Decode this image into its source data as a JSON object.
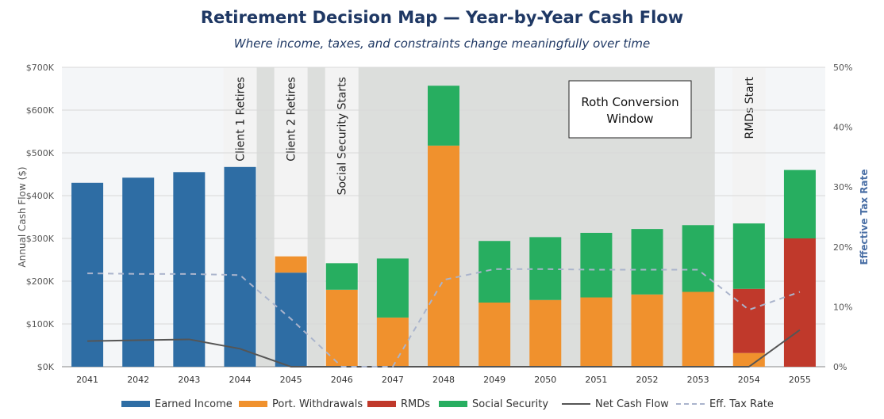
{
  "title": "Retirement Decision Map — Year-by-Year Cash Flow",
  "subtitle": "Where income, taxes, and constraints change meaningfully over time",
  "chart_data": {
    "type": "bar",
    "stacked": true,
    "categories": [
      "2041",
      "2042",
      "2043",
      "2044",
      "2045",
      "2046",
      "2047",
      "2048",
      "2049",
      "2050",
      "2051",
      "2052",
      "2053",
      "2054",
      "2055"
    ],
    "series": [
      {
        "name": "Earned Income",
        "color": "#2e6da4",
        "values": [
          430000,
          442000,
          455000,
          467000,
          220000,
          0,
          0,
          0,
          0,
          0,
          0,
          0,
          0,
          0,
          0
        ]
      },
      {
        "name": "Port. Withdrawals",
        "color": "#f0912d",
        "values": [
          0,
          0,
          0,
          0,
          38000,
          180000,
          115000,
          517000,
          150000,
          156000,
          162000,
          169000,
          175000,
          32000,
          0
        ]
      },
      {
        "name": "RMDs",
        "color": "#c0392b",
        "values": [
          0,
          0,
          0,
          0,
          0,
          0,
          0,
          0,
          0,
          0,
          0,
          0,
          0,
          150000,
          300000
        ]
      },
      {
        "name": "Social Security",
        "color": "#27ae60",
        "values": [
          0,
          0,
          0,
          0,
          0,
          62000,
          138000,
          140000,
          144000,
          147000,
          151000,
          153000,
          156000,
          153000,
          160000
        ]
      }
    ],
    "lines": [
      {
        "name": "Net Cash Flow",
        "axis": "left",
        "style": "solid",
        "color": "#555555",
        "values": [
          60000,
          62000,
          64000,
          42000,
          0,
          0,
          0,
          0,
          0,
          0,
          0,
          0,
          0,
          0,
          86000
        ]
      },
      {
        "name": "Eff. Tax Rate",
        "axis": "right",
        "style": "dashed",
        "color": "#aab4cc",
        "values": [
          15.6,
          15.5,
          15.5,
          15.3,
          8.0,
          0.0,
          0.0,
          14.5,
          16.3,
          16.3,
          16.2,
          16.2,
          16.2,
          9.5,
          12.5
        ]
      }
    ],
    "ylabel": "Annual Cash Flow ($)",
    "y2label": "Effective Tax Rate",
    "ylim": [
      0,
      700000
    ],
    "y2lim": [
      0,
      50
    ],
    "yticks": [
      "$0K",
      "$100K",
      "$200K",
      "$300K",
      "$400K",
      "$500K",
      "$600K",
      "$700K"
    ],
    "y2ticks": [
      "0%",
      "10%",
      "20%",
      "30%",
      "40%",
      "50%"
    ],
    "grid": true,
    "shaded_region": {
      "label": "Roth Conversion Window",
      "from": "2045",
      "to": "2054"
    },
    "milestones": [
      {
        "year": "2044",
        "label": "Client 1 Retires"
      },
      {
        "year": "2045",
        "label": "Client 2 Retires"
      },
      {
        "year": "2046",
        "label": "Social Security Starts"
      },
      {
        "year": "2054",
        "label": "RMDs Start"
      }
    ],
    "legend_position": "bottom",
    "legend": [
      "Earned Income",
      "Port. Withdrawals",
      "RMDs",
      "Social Security",
      "Net Cash Flow",
      "Eff. Tax Rate"
    ]
  }
}
